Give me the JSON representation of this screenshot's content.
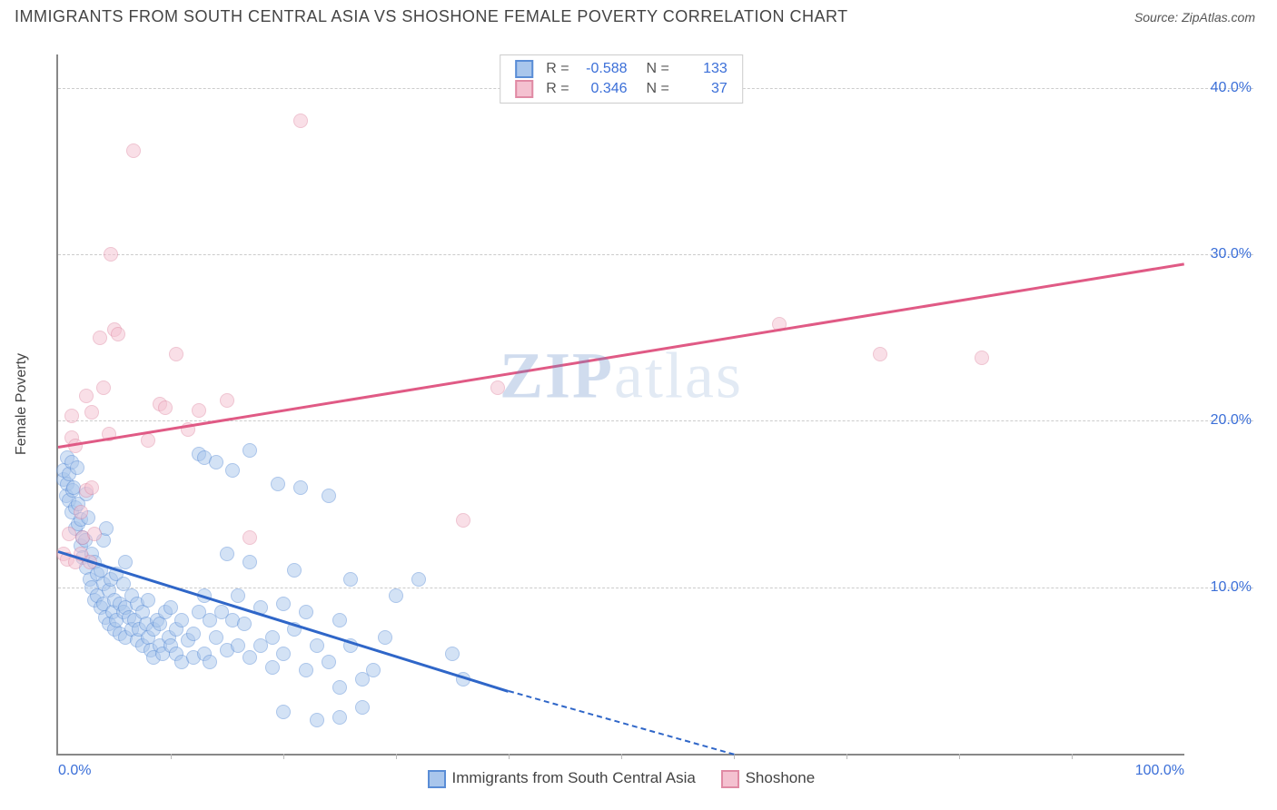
{
  "title": "IMMIGRANTS FROM SOUTH CENTRAL ASIA VS SHOSHONE FEMALE POVERTY CORRELATION CHART",
  "source_label": "Source:",
  "source_name": "ZipAtlas.com",
  "watermark": {
    "part1": "ZIP",
    "part2": "atlas"
  },
  "chart": {
    "type": "scatter",
    "xlabel": "",
    "ylabel": "Female Poverty",
    "xlim": [
      0,
      100
    ],
    "ylim": [
      0,
      42
    ],
    "xticks": [
      0,
      100
    ],
    "xtick_labels": [
      "0.0%",
      "100.0%"
    ],
    "yticks": [
      10,
      20,
      30,
      40
    ],
    "ytick_labels": [
      "10.0%",
      "20.0%",
      "30.0%",
      "40.0%"
    ],
    "x_minor_tick_count": 10,
    "background_color": "#ffffff",
    "grid_color_h": "#cccccc",
    "grid_color_v": "#bbbbbb",
    "axis_color": "#888888",
    "tick_label_color": "#3b6fd8",
    "marker_radius": 8,
    "marker_opacity": 0.5,
    "series": [
      {
        "name": "Immigrants from South Central Asia",
        "color_stroke": "#5a8dd6",
        "color_fill": "#a9c6ec",
        "R": "-0.588",
        "N": "133",
        "trend": {
          "x1": 0,
          "y1": 12.2,
          "x2": 40,
          "y2": 3.8,
          "color": "#2f66c8",
          "extend_to_x": 60,
          "extend_to_y": 0
        },
        "points": [
          [
            0.5,
            16.5
          ],
          [
            0.5,
            17.0
          ],
          [
            0.7,
            15.5
          ],
          [
            0.8,
            16.2
          ],
          [
            0.8,
            17.8
          ],
          [
            1.0,
            15.2
          ],
          [
            1.0,
            16.8
          ],
          [
            1.2,
            17.5
          ],
          [
            1.2,
            14.5
          ],
          [
            1.3,
            15.8
          ],
          [
            1.4,
            16.0
          ],
          [
            1.5,
            14.8
          ],
          [
            1.5,
            13.5
          ],
          [
            1.7,
            17.2
          ],
          [
            1.8,
            15.0
          ],
          [
            1.8,
            13.8
          ],
          [
            2.0,
            12.5
          ],
          [
            2.0,
            14.1
          ],
          [
            2.2,
            13.0
          ],
          [
            2.2,
            11.8
          ],
          [
            2.4,
            12.8
          ],
          [
            2.5,
            15.6
          ],
          [
            2.5,
            11.2
          ],
          [
            2.7,
            14.2
          ],
          [
            2.8,
            10.5
          ],
          [
            3.0,
            12.0
          ],
          [
            3.0,
            10.0
          ],
          [
            3.2,
            11.5
          ],
          [
            3.2,
            9.2
          ],
          [
            3.5,
            10.8
          ],
          [
            3.5,
            9.5
          ],
          [
            3.8,
            11.0
          ],
          [
            3.8,
            8.8
          ],
          [
            4.0,
            10.2
          ],
          [
            4.0,
            9.0
          ],
          [
            4.0,
            12.8
          ],
          [
            4.2,
            8.2
          ],
          [
            4.3,
            13.5
          ],
          [
            4.5,
            9.8
          ],
          [
            4.5,
            7.8
          ],
          [
            4.7,
            10.5
          ],
          [
            4.8,
            8.5
          ],
          [
            5.0,
            9.2
          ],
          [
            5.0,
            7.5
          ],
          [
            5.2,
            10.8
          ],
          [
            5.2,
            8.0
          ],
          [
            5.5,
            9.0
          ],
          [
            5.5,
            7.2
          ],
          [
            5.8,
            8.5
          ],
          [
            5.8,
            10.2
          ],
          [
            6.0,
            8.8
          ],
          [
            6.0,
            7.0
          ],
          [
            6.0,
            11.5
          ],
          [
            6.3,
            8.2
          ],
          [
            6.5,
            7.5
          ],
          [
            6.5,
            9.5
          ],
          [
            6.8,
            8.0
          ],
          [
            7.0,
            6.8
          ],
          [
            7.0,
            9.0
          ],
          [
            7.2,
            7.5
          ],
          [
            7.5,
            8.5
          ],
          [
            7.5,
            6.5
          ],
          [
            7.8,
            7.8
          ],
          [
            8.0,
            7.0
          ],
          [
            8.0,
            9.2
          ],
          [
            8.2,
            6.2
          ],
          [
            8.5,
            7.5
          ],
          [
            8.5,
            5.8
          ],
          [
            8.8,
            8.0
          ],
          [
            9.0,
            6.5
          ],
          [
            9.0,
            7.8
          ],
          [
            9.3,
            6.0
          ],
          [
            9.5,
            8.5
          ],
          [
            9.8,
            7.0
          ],
          [
            10.0,
            6.5
          ],
          [
            10.0,
            8.8
          ],
          [
            10.5,
            6.0
          ],
          [
            10.5,
            7.5
          ],
          [
            11.0,
            5.5
          ],
          [
            11.0,
            8.0
          ],
          [
            11.5,
            6.8
          ],
          [
            12.0,
            5.8
          ],
          [
            12.0,
            7.2
          ],
          [
            12.5,
            8.5
          ],
          [
            12.5,
            18.0
          ],
          [
            13.0,
            6.0
          ],
          [
            13.0,
            9.5
          ],
          [
            13.0,
            17.8
          ],
          [
            13.5,
            5.5
          ],
          [
            13.5,
            8.0
          ],
          [
            14.0,
            7.0
          ],
          [
            14.0,
            17.5
          ],
          [
            14.5,
            8.5
          ],
          [
            15.0,
            6.2
          ],
          [
            15.0,
            12.0
          ],
          [
            15.5,
            8.0
          ],
          [
            15.5,
            17.0
          ],
          [
            16.0,
            6.5
          ],
          [
            16.0,
            9.5
          ],
          [
            16.5,
            7.8
          ],
          [
            17.0,
            5.8
          ],
          [
            17.0,
            11.5
          ],
          [
            17.0,
            18.2
          ],
          [
            18.0,
            6.5
          ],
          [
            18.0,
            8.8
          ],
          [
            19.0,
            7.0
          ],
          [
            19.0,
            5.2
          ],
          [
            19.5,
            16.2
          ],
          [
            20.0,
            6.0
          ],
          [
            20.0,
            9.0
          ],
          [
            20.0,
            2.5
          ],
          [
            21.0,
            7.5
          ],
          [
            21.0,
            11.0
          ],
          [
            21.5,
            16.0
          ],
          [
            22.0,
            5.0
          ],
          [
            22.0,
            8.5
          ],
          [
            23.0,
            6.5
          ],
          [
            23.0,
            2.0
          ],
          [
            24.0,
            5.5
          ],
          [
            24.0,
            15.5
          ],
          [
            25.0,
            4.0
          ],
          [
            25.0,
            8.0
          ],
          [
            25.0,
            2.2
          ],
          [
            26.0,
            6.5
          ],
          [
            26.0,
            10.5
          ],
          [
            27.0,
            4.5
          ],
          [
            27.0,
            2.8
          ],
          [
            28.0,
            5.0
          ],
          [
            29.0,
            7.0
          ],
          [
            30.0,
            9.5
          ],
          [
            32.0,
            10.5
          ],
          [
            35.0,
            6.0
          ],
          [
            36.0,
            4.5
          ]
        ]
      },
      {
        "name": "Shoshone",
        "color_stroke": "#e08aa4",
        "color_fill": "#f4c1d0",
        "R": "0.346",
        "N": "37",
        "trend": {
          "x1": 0,
          "y1": 18.5,
          "x2": 100,
          "y2": 29.5,
          "color": "#e05a85"
        },
        "points": [
          [
            0.5,
            12.0
          ],
          [
            0.8,
            11.7
          ],
          [
            1.0,
            13.2
          ],
          [
            1.2,
            19.0
          ],
          [
            1.2,
            20.3
          ],
          [
            1.5,
            11.5
          ],
          [
            1.5,
            18.5
          ],
          [
            2.0,
            12.0
          ],
          [
            2.0,
            14.5
          ],
          [
            2.2,
            13.0
          ],
          [
            2.5,
            15.8
          ],
          [
            2.5,
            21.5
          ],
          [
            2.8,
            11.5
          ],
          [
            3.0,
            16.0
          ],
          [
            3.0,
            20.5
          ],
          [
            3.2,
            13.2
          ],
          [
            3.7,
            25.0
          ],
          [
            4.0,
            22.0
          ],
          [
            4.5,
            19.2
          ],
          [
            4.7,
            30.0
          ],
          [
            5.0,
            25.5
          ],
          [
            5.3,
            25.2
          ],
          [
            6.7,
            36.2
          ],
          [
            8.0,
            18.8
          ],
          [
            9.0,
            21.0
          ],
          [
            9.5,
            20.8
          ],
          [
            10.5,
            24.0
          ],
          [
            11.5,
            19.5
          ],
          [
            12.5,
            20.6
          ],
          [
            15.0,
            21.2
          ],
          [
            17.0,
            13.0
          ],
          [
            21.5,
            38.0
          ],
          [
            36.0,
            14.0
          ],
          [
            39.0,
            22.0
          ],
          [
            64.0,
            25.8
          ],
          [
            73.0,
            24.0
          ],
          [
            82.0,
            23.8
          ]
        ]
      }
    ]
  }
}
